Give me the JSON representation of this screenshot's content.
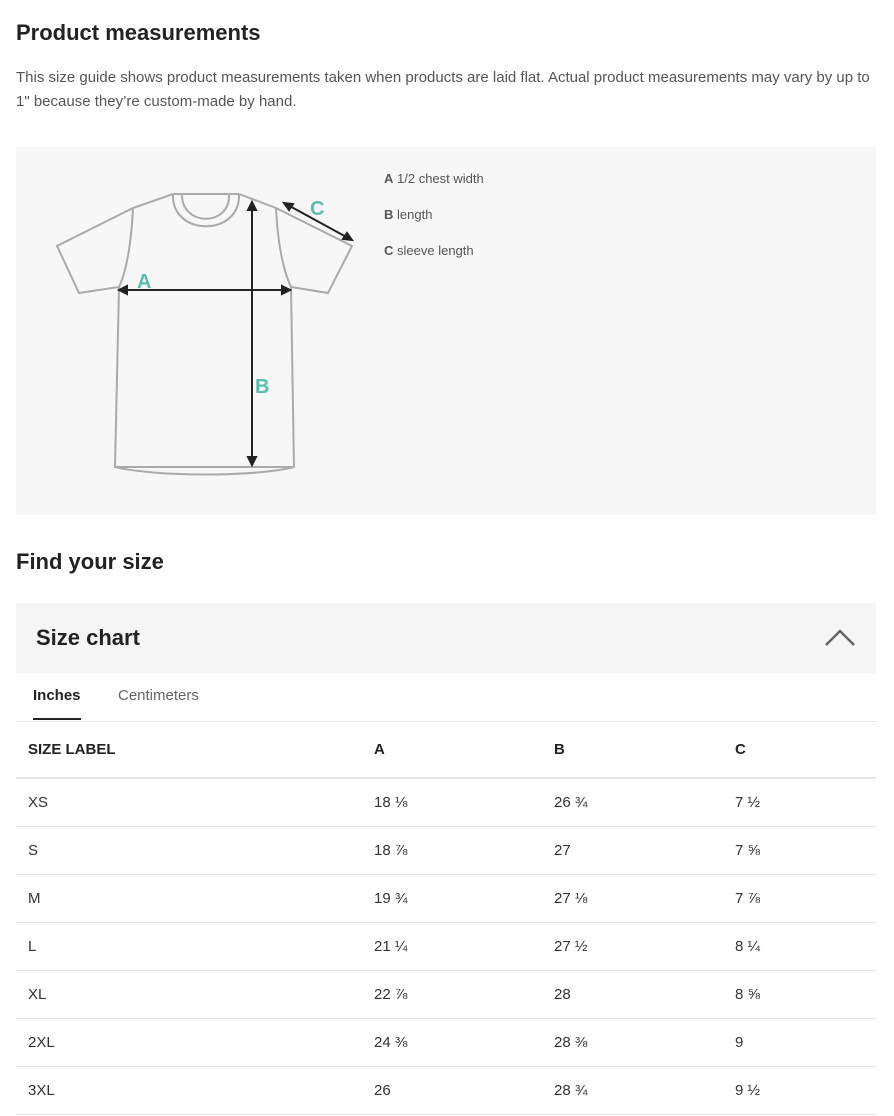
{
  "measurements": {
    "title": "Product measurements",
    "description": "This size guide shows product measurements taken when products are laid flat. Actual product measurements may vary by up to 1\" because they’re custom-made by hand.",
    "legend": [
      {
        "key": "A",
        "label": "1/2 chest width"
      },
      {
        "key": "B",
        "label": "length"
      },
      {
        "key": "C",
        "label": "sleeve length"
      }
    ],
    "accent_color": "#5bbcb0"
  },
  "find": {
    "title": "Find your size"
  },
  "size_chart": {
    "title": "Size chart",
    "expanded": true,
    "tabs": [
      {
        "label": "Inches",
        "active": true
      },
      {
        "label": "Centimeters",
        "active": false
      }
    ],
    "headers": [
      "SIZE LABEL",
      "A",
      "B",
      "C"
    ],
    "rows": [
      [
        "XS",
        "18 ⅛",
        "26 ¾",
        "7 ½"
      ],
      [
        "S",
        "18 ⅞",
        "27",
        "7 ⅝"
      ],
      [
        "M",
        "19 ¾",
        "27 ⅛",
        "7 ⅞"
      ],
      [
        "L",
        "21 ¼",
        "27 ½",
        "8 ¼"
      ],
      [
        "XL",
        "22 ⅞",
        "28",
        "8 ⅝"
      ],
      [
        "2XL",
        "24 ⅜",
        "28 ⅜",
        "9"
      ],
      [
        "3XL",
        "26",
        "28 ¾",
        "9 ½"
      ]
    ]
  }
}
